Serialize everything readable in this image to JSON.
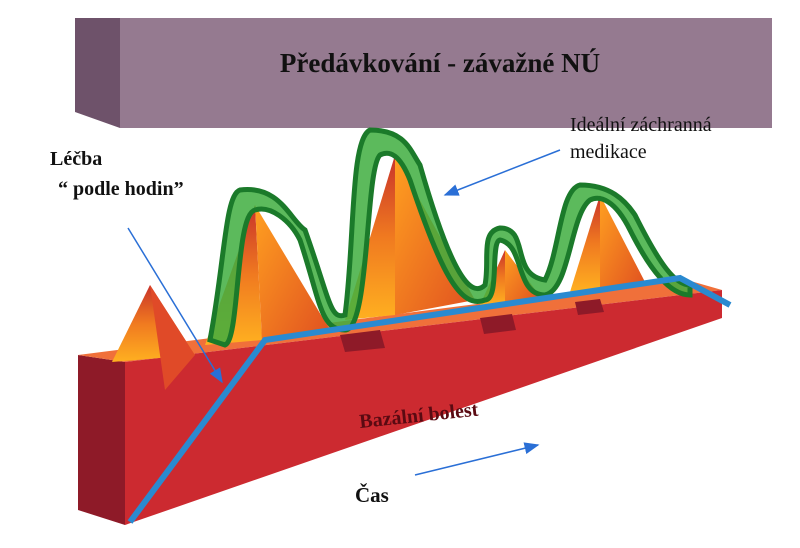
{
  "header": {
    "title": "Předávkování - závažné NÚ"
  },
  "labels": {
    "rescue": [
      "Ideální záchranná",
      "medikace"
    ],
    "treatment": [
      "Léčba",
      "“ podle hodin”"
    ],
    "base": "Bazální bolest",
    "time": "Čas"
  }
}
